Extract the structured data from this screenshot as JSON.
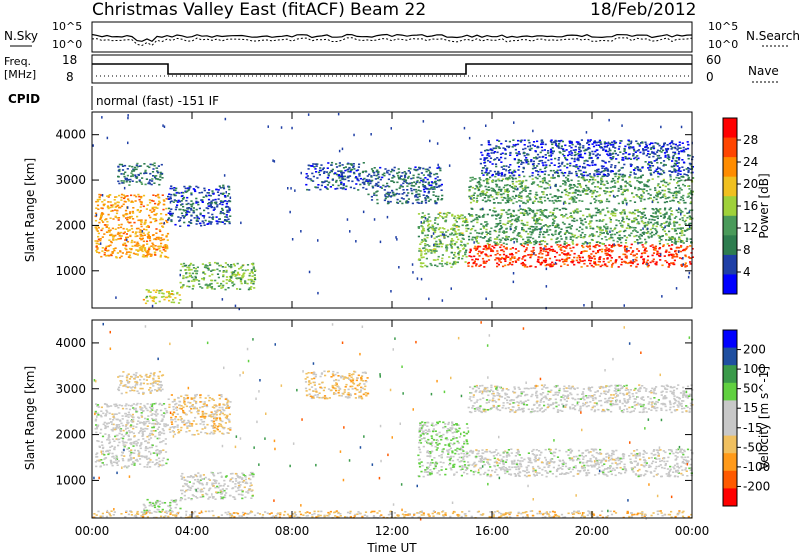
{
  "header": {
    "title": "Christmas Valley East (fitACF)",
    "beam": "Beam 22",
    "date": "18/Feb/2012"
  },
  "summary_panels": {
    "nsky_label": "N.Sky",
    "nsearch_label": "N.Search",
    "nsky_ticks": [
      "10^5",
      "10^0"
    ],
    "nsearch_ticks": [
      "10^5",
      "10^0"
    ],
    "freq_label_1": "Freq.",
    "freq_label_2": "[MHz]",
    "freq_ticks": [
      "18",
      "8"
    ],
    "nave_label": "Nave",
    "nave_ticks": [
      "60",
      "0"
    ],
    "cpid_label": "CPID",
    "cpid_text": "normal (fast) -151 IF"
  },
  "colors": {
    "power_scale": [
      "#0000ff",
      "#1f3fa6",
      "#2e7d4f",
      "#4a9a5a",
      "#9fd13a",
      "#f0c020",
      "#ff8c00",
      "#ff4500",
      "#ff0000"
    ],
    "velocity_scale": [
      "#ff0000",
      "#ff5a00",
      "#ff9a1a",
      "#f0c060",
      "#c8c8c8",
      "#c8c8c8",
      "#60d040",
      "#3a9a4a",
      "#1f4fa0",
      "#0000ff"
    ]
  },
  "chart_data": [
    {
      "type": "heatmap",
      "title": "",
      "xlabel": "",
      "ylabel": "Slant Range [km]",
      "xlim": [
        "00:00",
        "24:00"
      ],
      "ylim": [
        180,
        4500
      ],
      "x_ticks": [
        "00:00",
        "04:00",
        "08:00",
        "12:00",
        "16:00",
        "20:00",
        "00:00"
      ],
      "y_ticks": [
        "1000",
        "2000",
        "3000",
        "4000"
      ],
      "colorbar_label": "Power [dB]",
      "colorbar_ticks": [
        "28",
        "24",
        "20",
        "16",
        "12",
        "8",
        "4"
      ],
      "colorbar_range": [
        0,
        32
      ],
      "echo_regions": [
        {
          "t0": 0.1,
          "t1": 3.0,
          "r0": 1300,
          "r1": 2700,
          "value": 22
        },
        {
          "t0": 1.0,
          "t1": 2.8,
          "r0": 2900,
          "r1": 3400,
          "value": 8
        },
        {
          "t0": 2.0,
          "t1": 3.5,
          "r0": 300,
          "r1": 600,
          "value": 18
        },
        {
          "t0": 3.5,
          "t1": 6.5,
          "r0": 600,
          "r1": 1200,
          "value": 14
        },
        {
          "t0": 3.0,
          "t1": 5.5,
          "r0": 2000,
          "r1": 2900,
          "value": 6
        },
        {
          "t0": 8.5,
          "t1": 11.0,
          "r0": 2800,
          "r1": 3400,
          "value": 6
        },
        {
          "t0": 11.0,
          "t1": 14.0,
          "r0": 2500,
          "r1": 3300,
          "value": 7
        },
        {
          "t0": 13.0,
          "t1": 15.0,
          "r0": 1100,
          "r1": 2300,
          "value": 14
        },
        {
          "t0": 15.0,
          "t1": 24.0,
          "r0": 1100,
          "r1": 1600,
          "value": 28
        },
        {
          "t0": 15.0,
          "t1": 24.0,
          "r0": 1600,
          "r1": 2400,
          "value": 12
        },
        {
          "t0": 15.0,
          "t1": 24.0,
          "r0": 2500,
          "r1": 3100,
          "value": 12
        },
        {
          "t0": 15.5,
          "t1": 24.0,
          "r0": 3100,
          "r1": 3900,
          "value": 5
        }
      ]
    },
    {
      "type": "heatmap",
      "title": "",
      "xlabel": "Time UT",
      "ylabel": "Slant Range [km]",
      "xlim": [
        "00:00",
        "24:00"
      ],
      "ylim": [
        180,
        4500
      ],
      "x_ticks": [
        "00:00",
        "04:00",
        "08:00",
        "12:00",
        "16:00",
        "20:00",
        "00:00"
      ],
      "y_ticks": [
        "1000",
        "2000",
        "3000",
        "4000"
      ],
      "colorbar_label": "Velocity [m s^-1]",
      "colorbar_ticks": [
        "200",
        "100",
        "50",
        "15",
        "-15",
        "-50",
        "-100",
        "-200"
      ],
      "colorbar_range": [
        -250,
        250
      ],
      "echo_regions": [
        {
          "t0": 0.1,
          "t1": 3.0,
          "r0": 1300,
          "r1": 2700,
          "value": 0
        },
        {
          "t0": 1.0,
          "t1": 2.8,
          "r0": 2900,
          "r1": 3400,
          "value": -40
        },
        {
          "t0": 2.0,
          "t1": 3.5,
          "r0": 300,
          "r1": 600,
          "value": 40
        },
        {
          "t0": 3.5,
          "t1": 6.5,
          "r0": 600,
          "r1": 1200,
          "value": 0
        },
        {
          "t0": 3.0,
          "t1": 5.5,
          "r0": 2000,
          "r1": 2900,
          "value": -60
        },
        {
          "t0": 8.5,
          "t1": 11.0,
          "r0": 2800,
          "r1": 3400,
          "value": -60
        },
        {
          "t0": 13.0,
          "t1": 15.0,
          "r0": 1100,
          "r1": 2300,
          "value": 40
        },
        {
          "t0": 15.0,
          "t1": 24.0,
          "r0": 1100,
          "r1": 1700,
          "value": 0
        },
        {
          "t0": 15.0,
          "t1": 24.0,
          "r0": 2500,
          "r1": 3100,
          "value": 0
        },
        {
          "t0": 0.0,
          "t1": 24.0,
          "r0": 200,
          "r1": 350,
          "value": -60
        }
      ]
    }
  ]
}
